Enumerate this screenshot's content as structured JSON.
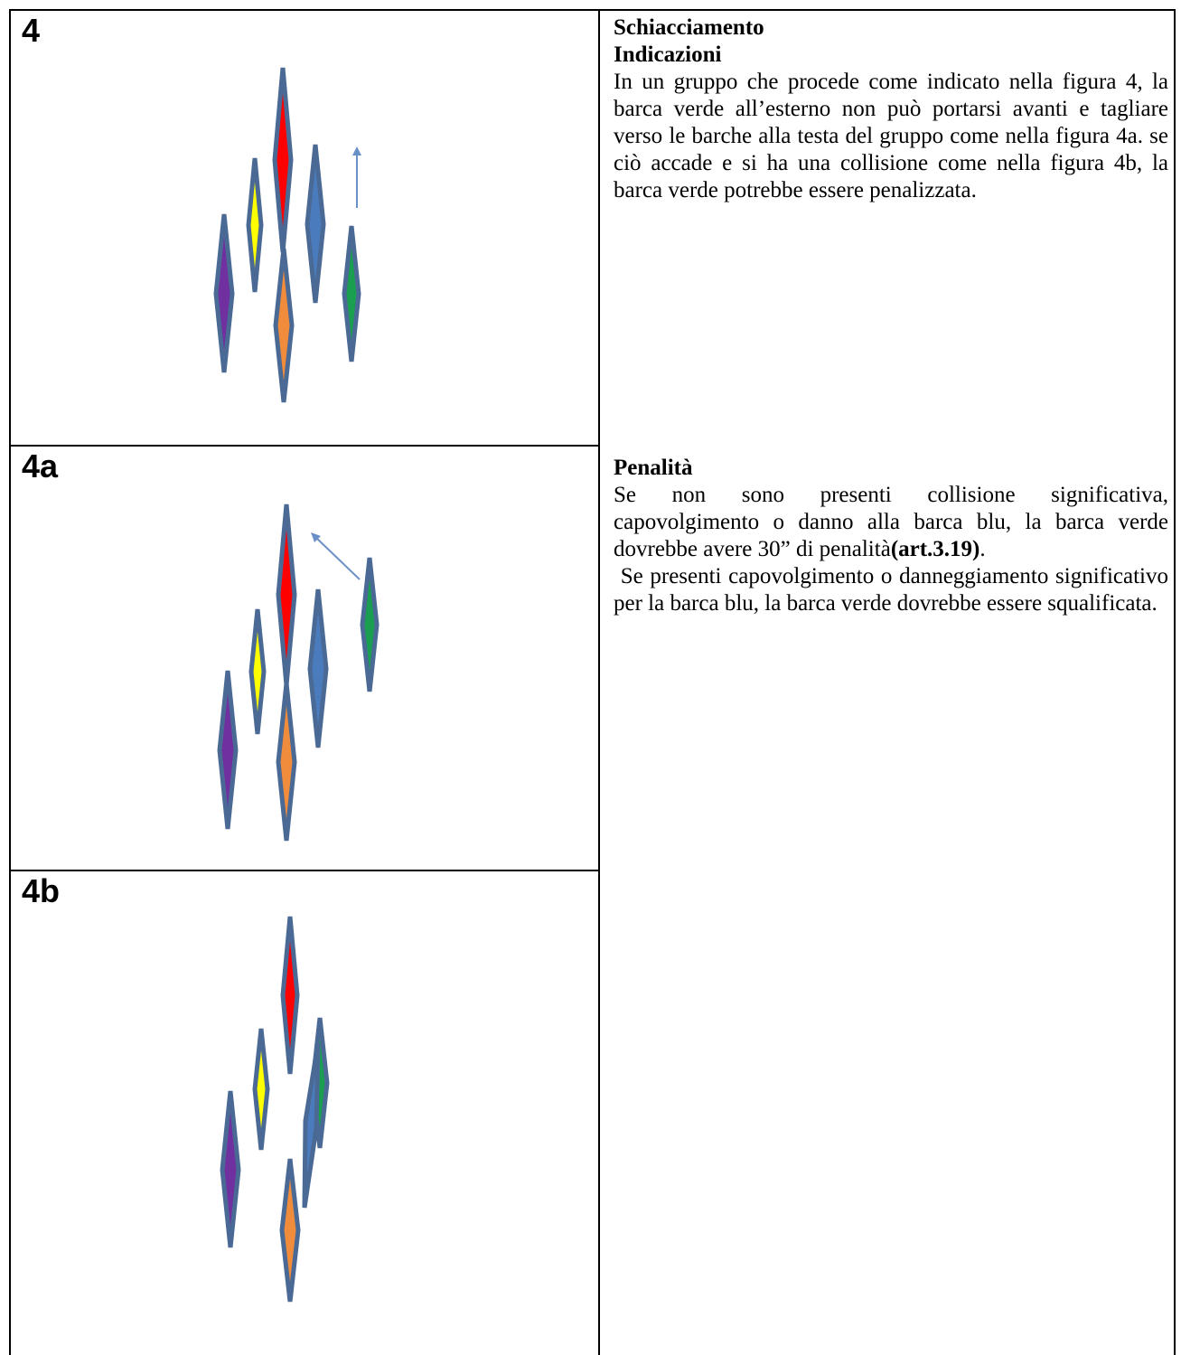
{
  "figures": {
    "fig4": {
      "label": "4"
    },
    "fig4a": {
      "label": "4a"
    },
    "fig4b": {
      "label": "4b"
    }
  },
  "colors": {
    "outline": "#4a6a95",
    "red": "#ff0000",
    "yellow": "#ffff00",
    "blue": "#4a7cbd",
    "green": "#1a9e50",
    "purple": "#7030a0",
    "orange": "#f08c3c",
    "arrow": "#6b8fc7"
  },
  "sections": {
    "schiacciamento": {
      "title": "Schiacciamento",
      "subtitle": "Indicazioni",
      "body": "In un gruppo che procede come indicato nella figura 4, la barca verde all’esterno non può portarsi avanti e tagliare verso le barche alla testa del gruppo come nella figura 4a. se ciò accade e si ha una collisione come nella figura 4b, la barca verde potrebbe essere penalizzata."
    },
    "penalita": {
      "title": "Penalità",
      "body_start": "Se non sono presenti collisione significativa, capovolgimento o danno alla barca blu, la barca verde dovrebbe avere 30” di penalità",
      "body_ref": "(art.3.19)",
      "body_end": ".",
      "body2": " Se presenti capovolgimento o danneggiamento significativo per la barca blu, la barca verde dovrebbe essere squalificata."
    }
  }
}
